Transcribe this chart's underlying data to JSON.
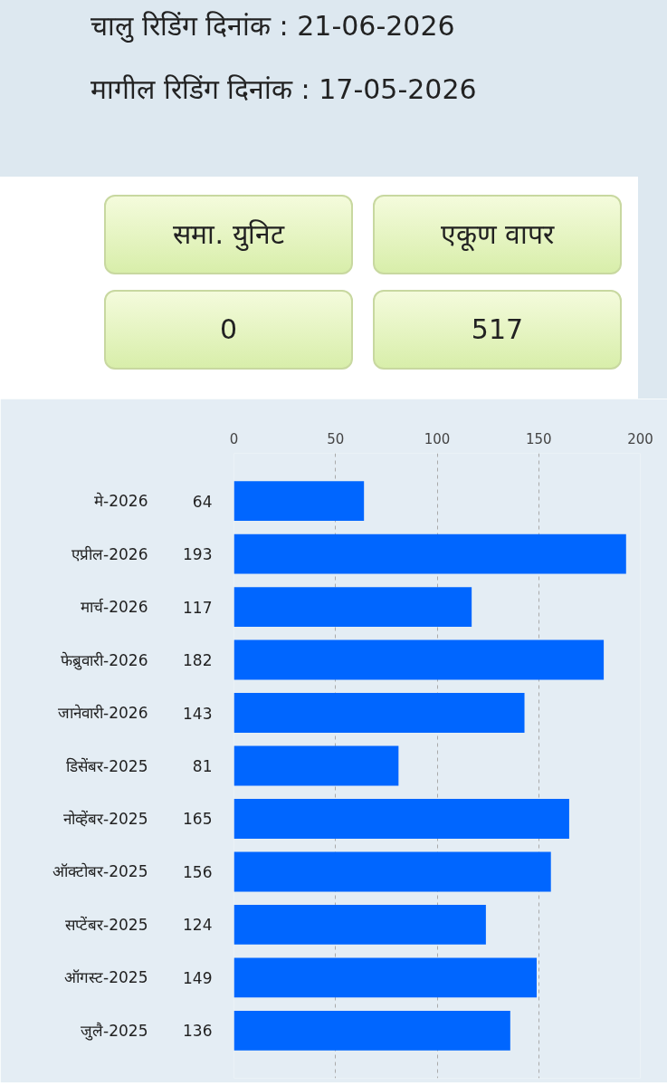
{
  "chart_data": {
    "type": "bar",
    "orientation": "horizontal",
    "categories": [
      "मे-2026",
      "एप्रील-2026",
      "मार्च-2026",
      "फेब्रुवारी-2026",
      "जानेवारी-2026",
      "डिसेंबर-2025",
      "नोव्हेंबर-2025",
      "ऑक्टोबर-2025",
      "सप्टेंबर-2025",
      "ऑगस्ट-2025",
      "जुलै-2025"
    ],
    "values": [
      64,
      193,
      117,
      182,
      143,
      81,
      165,
      156,
      124,
      149,
      136
    ],
    "color": "#0066ff",
    "xlim": [
      0,
      200
    ],
    "xticks": [
      0,
      50,
      100,
      150,
      200
    ],
    "grid": "x",
    "data_labels": true,
    "annotations": [
      "चालु रिडिंग दिनांक : 21-06-2026",
      "मागील रिडिंग दिनांक : 17-05-2026",
      "समा. युनिट",
      "0",
      "एकूण वापर",
      "517"
    ]
  }
}
